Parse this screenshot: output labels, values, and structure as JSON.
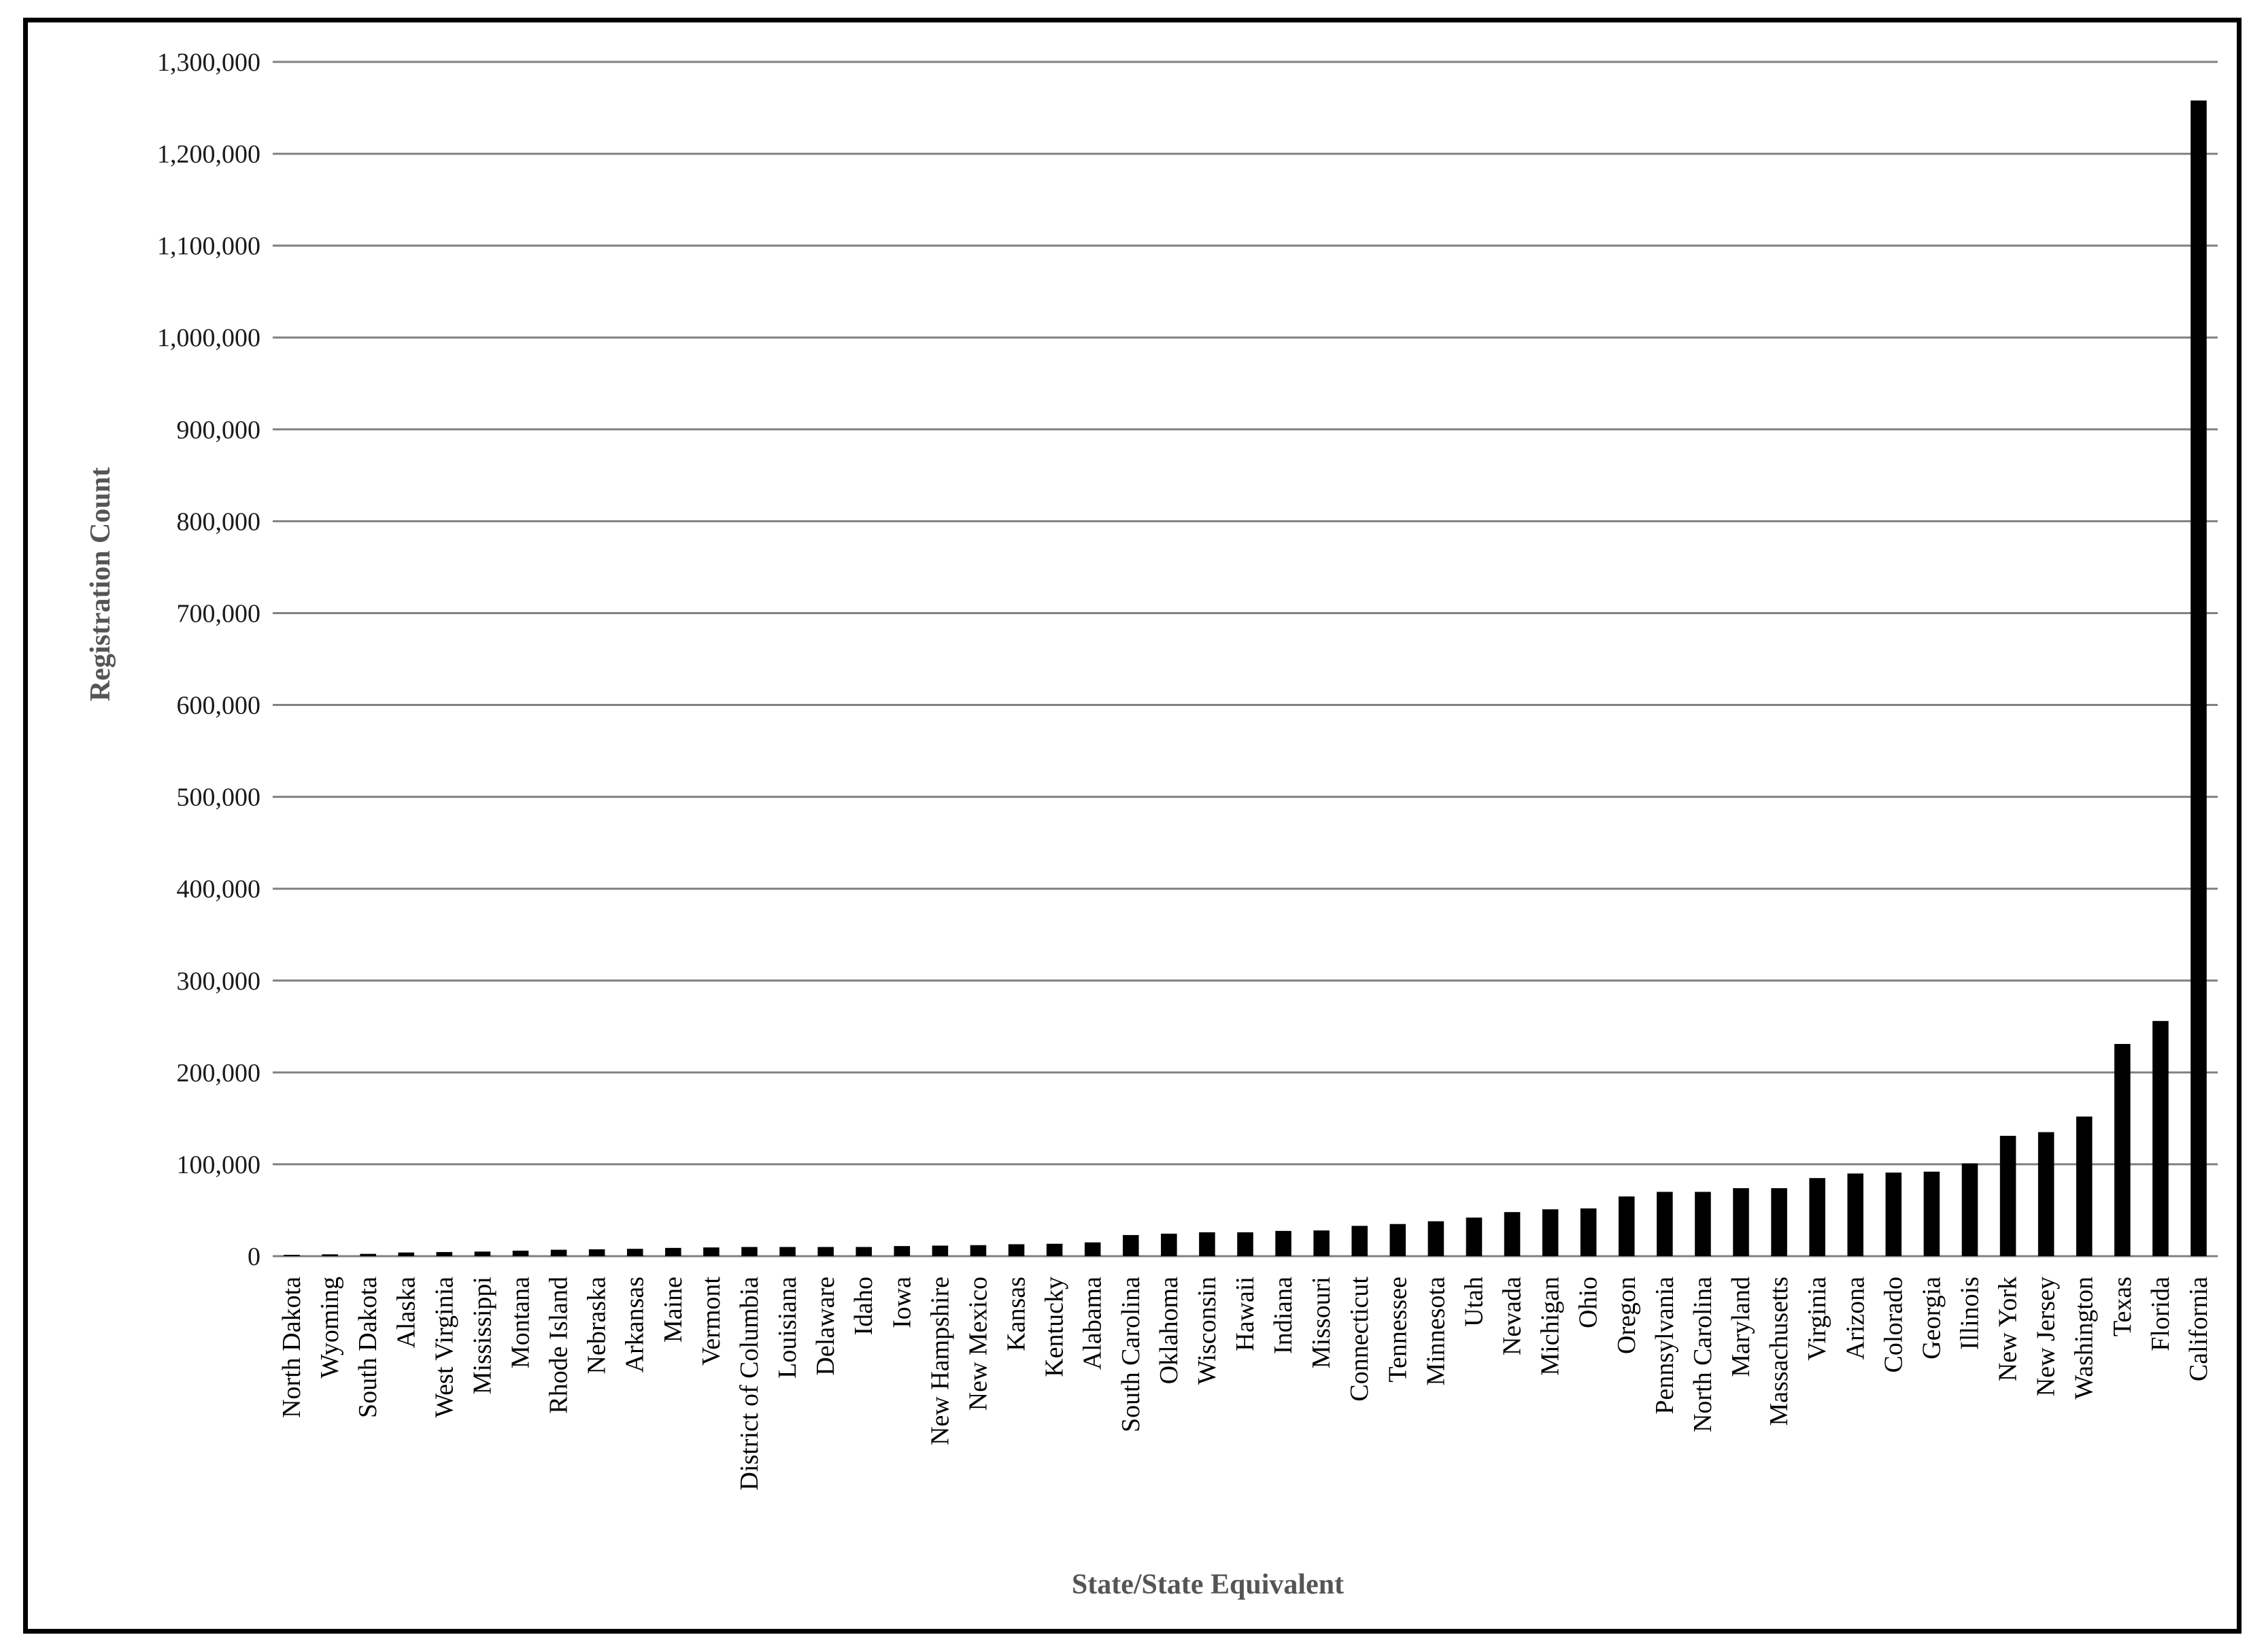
{
  "chart_data": {
    "type": "bar",
    "title": "",
    "xlabel": "State/State Equivalent",
    "ylabel": "Registration Count",
    "ylim": [
      0,
      1300000
    ],
    "yticks": [
      0,
      100000,
      200000,
      300000,
      400000,
      500000,
      600000,
      700000,
      800000,
      900000,
      1000000,
      1100000,
      1200000,
      1300000
    ],
    "ytick_labels": [
      "0",
      "100,000",
      "200,000",
      "300,000",
      "400,000",
      "500,000",
      "600,000",
      "700,000",
      "800,000",
      "900,000",
      "1,000,000",
      "1,100,000",
      "1,200,000",
      "1,300,000"
    ],
    "grid": true,
    "categories": [
      "North Dakota",
      "Wyoming",
      "South Dakota",
      "Alaska",
      "West Virginia",
      "Mississippi",
      "Montana",
      "Rhode Island",
      "Nebraska",
      "Arkansas",
      "Maine",
      "Vermont",
      "District of Columbia",
      "Louisiana",
      "Delaware",
      "Idaho",
      "Iowa",
      "New Hampshire",
      "New Mexico",
      "Kansas",
      "Kentucky",
      "Alabama",
      "South Carolina",
      "Oklahoma",
      "Wisconsin",
      "Hawaii",
      "Indiana",
      "Missouri",
      "Connecticut",
      "Tennessee",
      "Minnesota",
      "Utah",
      "Nevada",
      "Michigan",
      "Ohio",
      "Oregon",
      "Pennsylvania",
      "North Carolina",
      "Maryland",
      "Massachusetts",
      "Virginia",
      "Arizona",
      "Colorado",
      "Georgia",
      "Illinois",
      "New York",
      "New Jersey",
      "Washington",
      "Texas",
      "Florida",
      "California"
    ],
    "values": [
      1500,
      2000,
      2500,
      4000,
      4500,
      5000,
      6000,
      7000,
      7500,
      8000,
      9000,
      9500,
      10000,
      10000,
      10000,
      10000,
      11000,
      11500,
      12000,
      13000,
      13500,
      15000,
      23000,
      24500,
      26000,
      26000,
      27500,
      28000,
      33000,
      35000,
      38000,
      42000,
      48000,
      51000,
      52000,
      65000,
      70000,
      70000,
      74000,
      74000,
      85000,
      90000,
      91000,
      92000,
      101000,
      131000,
      135000,
      152000,
      231000,
      256000,
      1258000
    ],
    "bar_color": "#000000",
    "grid_color": "#808080"
  }
}
